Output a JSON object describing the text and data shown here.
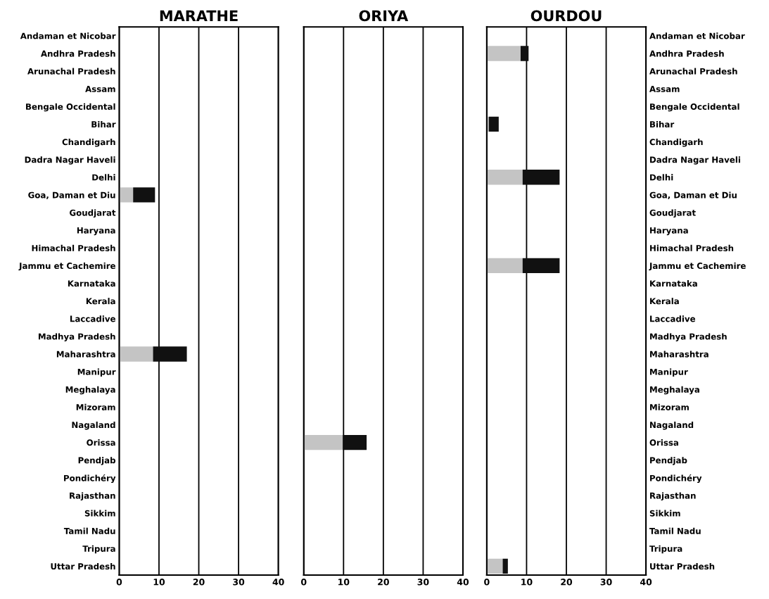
{
  "chart_data": [
    {
      "type": "bar",
      "orientation": "horizontal",
      "stacked": true,
      "title": "MARATHE",
      "categories": [
        "Andaman et Nicobar",
        "Andhra Pradesh",
        "Arunachal Pradesh",
        "Assam",
        "Bengale Occidental",
        "Bihar",
        "Chandigarh",
        "Dadra Nagar Haveli",
        "Delhi",
        "Goa, Daman et Diu",
        "Goudjarat",
        "Haryana",
        "Himachal Pradesh",
        "Jammu et Cachemire",
        "Karnataka",
        "Kerala",
        "Laccadive",
        "Madhya Pradesh",
        "Maharashtra",
        "Manipur",
        "Meghalaya",
        "Mizoram",
        "Nagaland",
        "Orissa",
        "Pendjab",
        "Pondichéry",
        "Rajasthan",
        "Sikkim",
        "Tamil Nadu",
        "Tripura",
        "Uttar Pradesh"
      ],
      "series": [
        {
          "color": "#c4c4c4",
          "values": [
            null,
            null,
            null,
            null,
            null,
            null,
            null,
            null,
            null,
            3.5,
            null,
            null,
            null,
            null,
            null,
            null,
            null,
            null,
            8.5,
            null,
            null,
            null,
            null,
            null,
            null,
            null,
            null,
            null,
            null,
            null,
            null
          ]
        },
        {
          "color": "#111111",
          "values": [
            null,
            null,
            null,
            null,
            null,
            null,
            null,
            null,
            null,
            5.5,
            null,
            null,
            null,
            null,
            null,
            null,
            null,
            null,
            8.5,
            null,
            null,
            null,
            null,
            null,
            null,
            null,
            null,
            null,
            null,
            null,
            null
          ]
        }
      ],
      "xlim": [
        0,
        40
      ],
      "xticks": [
        0,
        10,
        20,
        30,
        40
      ],
      "grid": "x"
    },
    {
      "type": "bar",
      "orientation": "horizontal",
      "stacked": true,
      "title": "ORIYA",
      "tick_labels": "x",
      "categories": [
        null,
        null,
        null,
        null,
        null,
        null,
        null,
        null,
        null,
        null,
        null,
        null,
        null,
        null,
        null,
        null,
        null,
        null,
        null,
        null,
        null,
        null,
        null,
        null,
        null,
        null,
        null,
        null,
        null,
        null,
        null
      ],
      "series": [
        {
          "color": "#c4c4c4",
          "values": [
            null,
            null,
            null,
            null,
            null,
            null,
            null,
            null,
            null,
            null,
            null,
            null,
            null,
            null,
            null,
            null,
            null,
            null,
            null,
            null,
            null,
            null,
            null,
            9.8,
            null,
            null,
            null,
            null,
            null,
            null,
            null
          ]
        },
        {
          "color": "#111111",
          "values": [
            null,
            null,
            null,
            null,
            null,
            null,
            null,
            null,
            null,
            null,
            null,
            null,
            null,
            null,
            null,
            null,
            null,
            null,
            null,
            null,
            null,
            null,
            null,
            6,
            null,
            null,
            null,
            null,
            null,
            null,
            null
          ]
        }
      ],
      "xlim": [
        0,
        40
      ],
      "xticks": [
        0,
        10,
        20,
        30,
        40
      ],
      "grid": "x"
    },
    {
      "type": "bar",
      "orientation": "horizontal",
      "stacked": true,
      "title": "OURDOU",
      "categories": [
        "Andaman et Nicobar",
        "Andhra Pradesh",
        "Arunachal Pradesh",
        "Assam",
        "Bengale Occidental",
        "Bihar",
        "Chandigarh",
        "Dadra Nagar Haveli",
        "Delhi",
        "Goa, Daman et Diu",
        "Goudjarat",
        "Haryana",
        "Himachal Pradesh",
        "Jammu et Cachemire",
        "Karnataka",
        "Kerala",
        "Laccadive",
        "Madhya Pradesh",
        "Maharashtra",
        "Manipur",
        "Meghalaya",
        "Mizoram",
        "Nagaland",
        "Orissa",
        "Pendjab",
        "Pondichéry",
        "Rajasthan",
        "Sikkim",
        "Tamil Nadu",
        "Tripura",
        "Uttar Pradesh"
      ],
      "series": [
        {
          "color": "#c4c4c4",
          "values": [
            null,
            8.5,
            null,
            null,
            null,
            0.5,
            null,
            null,
            9,
            null,
            null,
            null,
            null,
            9,
            null,
            null,
            null,
            null,
            null,
            null,
            null,
            null,
            null,
            null,
            null,
            null,
            null,
            null,
            null,
            null,
            4
          ]
        },
        {
          "color": "#111111",
          "values": [
            null,
            2,
            null,
            null,
            null,
            2.5,
            null,
            null,
            9.3,
            null,
            null,
            null,
            null,
            9.3,
            null,
            null,
            null,
            null,
            null,
            null,
            null,
            null,
            null,
            null,
            null,
            null,
            null,
            null,
            null,
            null,
            1.3
          ]
        }
      ],
      "xlim": [
        0,
        40
      ],
      "xticks": [
        0,
        10,
        20,
        30,
        40
      ],
      "grid": "x"
    }
  ]
}
